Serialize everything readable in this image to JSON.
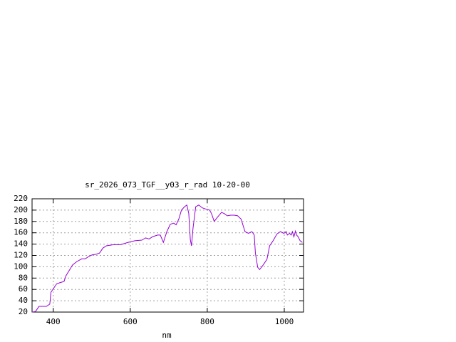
{
  "chart_data": {
    "type": "line",
    "title": "sr_2026_073_TGF__y03_r_rad 10-20-00",
    "x_label": "nm",
    "x": [
      345,
      354,
      363,
      382,
      391,
      394,
      400,
      409,
      418,
      428,
      433,
      441,
      450,
      461,
      474,
      483,
      492,
      501,
      511,
      520,
      529,
      538,
      557,
      575,
      594,
      612,
      630,
      640,
      649,
      658,
      671,
      678,
      686,
      695,
      704,
      713,
      719,
      726,
      733,
      741,
      747,
      752,
      756,
      759,
      763,
      770,
      778,
      787,
      796,
      806,
      811,
      818,
      826,
      837,
      844,
      852,
      861,
      870,
      879,
      888,
      898,
      907,
      916,
      922,
      925,
      931,
      936,
      944,
      955,
      962,
      971,
      981,
      990,
      999,
      1005,
      1008,
      1014,
      1018,
      1021,
      1025,
      1029,
      1032,
      1036,
      1041,
      1047
    ],
    "series": [
      {
        "color": "#9400d3",
        "values": [
          20,
          21,
          30,
          30,
          34,
          55,
          61,
          70,
          72,
          74,
          84,
          93,
          103,
          109,
          114,
          114,
          118,
          121,
          122,
          124,
          133,
          137,
          139,
          139,
          143,
          146,
          147,
          151,
          149,
          153,
          156,
          156,
          143,
          162,
          175,
          177,
          174,
          184,
          200,
          206,
          209,
          194,
          148,
          137,
          168,
          206,
          209,
          204,
          202,
          200,
          194,
          180,
          187,
          196,
          194,
          190,
          191,
          191,
          190,
          184,
          162,
          159,
          162,
          156,
          124,
          99,
          95,
          102,
          113,
          137,
          146,
          158,
          162,
          159,
          162,
          156,
          159,
          156,
          162,
          153,
          163,
          156,
          153,
          146,
          143
        ]
      }
    ],
    "xlim": [
      345,
      1050
    ],
    "ylim": [
      20,
      220
    ],
    "xticks": [
      400,
      600,
      800,
      1000
    ],
    "yticks": [
      20,
      40,
      60,
      80,
      100,
      120,
      140,
      160,
      180,
      200,
      220
    ],
    "grid": true
  }
}
